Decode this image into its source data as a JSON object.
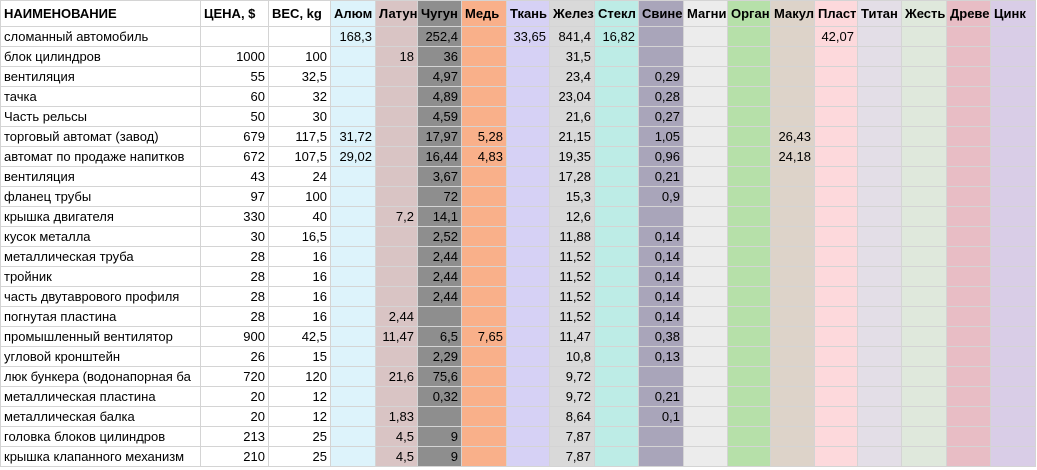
{
  "table": {
    "headers": [
      "НАИМЕНОВАНИЕ",
      "ЦЕНА, $",
      "ВЕС, kg",
      "Алюм",
      "Латун",
      "Чугун",
      "Медь",
      "Ткань",
      "Желез",
      "Стекл",
      "Свине",
      "Магни",
      "Орган",
      "Макул",
      "Пласти",
      "Титан",
      "Жесть",
      "Древе",
      "Цинк"
    ],
    "rows": [
      [
        "сломанный автомобиль",
        null,
        null,
        "168,3",
        null,
        "252,4",
        null,
        "33,65",
        "841,4",
        "16,82",
        null,
        null,
        null,
        null,
        "42,07",
        null,
        null,
        null,
        null
      ],
      [
        "блок цилиндров",
        "1000",
        "100",
        null,
        "18",
        "36",
        null,
        null,
        "31,5",
        null,
        null,
        null,
        null,
        null,
        null,
        null,
        null,
        null,
        null
      ],
      [
        "вентиляция",
        "55",
        "32,5",
        null,
        null,
        "4,97",
        null,
        null,
        "23,4",
        null,
        "0,29",
        null,
        null,
        null,
        null,
        null,
        null,
        null,
        null
      ],
      [
        "тачка",
        "60",
        "32",
        null,
        null,
        "4,89",
        null,
        null,
        "23,04",
        null,
        "0,28",
        null,
        null,
        null,
        null,
        null,
        null,
        null,
        null
      ],
      [
        "Часть рельсы",
        "50",
        "30",
        null,
        null,
        "4,59",
        null,
        null,
        "21,6",
        null,
        "0,27",
        null,
        null,
        null,
        null,
        null,
        null,
        null,
        null
      ],
      [
        "торговый автомат (завод)",
        "679",
        "117,5",
        "31,72",
        null,
        "17,97",
        "5,28",
        null,
        "21,15",
        null,
        "1,05",
        null,
        null,
        "26,43",
        null,
        null,
        null,
        null,
        null
      ],
      [
        "автомат по продаже напитков",
        "672",
        "107,5",
        "29,02",
        null,
        "16,44",
        "4,83",
        null,
        "19,35",
        null,
        "0,96",
        null,
        null,
        "24,18",
        null,
        null,
        null,
        null,
        null
      ],
      [
        "вентиляция",
        "43",
        "24",
        null,
        null,
        "3,67",
        null,
        null,
        "17,28",
        null,
        "0,21",
        null,
        null,
        null,
        null,
        null,
        null,
        null,
        null
      ],
      [
        "фланец трубы",
        "97",
        "100",
        null,
        null,
        "72",
        null,
        null,
        "15,3",
        null,
        "0,9",
        null,
        null,
        null,
        null,
        null,
        null,
        null,
        null
      ],
      [
        "крышка двигателя",
        "330",
        "40",
        null,
        "7,2",
        "14,1",
        null,
        null,
        "12,6",
        null,
        null,
        null,
        null,
        null,
        null,
        null,
        null,
        null,
        null
      ],
      [
        "кусок металла",
        "30",
        "16,5",
        null,
        null,
        "2,52",
        null,
        null,
        "11,88",
        null,
        "0,14",
        null,
        null,
        null,
        null,
        null,
        null,
        null,
        null
      ],
      [
        "металлическая труба",
        "28",
        "16",
        null,
        null,
        "2,44",
        null,
        null,
        "11,52",
        null,
        "0,14",
        null,
        null,
        null,
        null,
        null,
        null,
        null,
        null
      ],
      [
        "тройник",
        "28",
        "16",
        null,
        null,
        "2,44",
        null,
        null,
        "11,52",
        null,
        "0,14",
        null,
        null,
        null,
        null,
        null,
        null,
        null,
        null
      ],
      [
        "часть двутаврового профиля",
        "28",
        "16",
        null,
        null,
        "2,44",
        null,
        null,
        "11,52",
        null,
        "0,14",
        null,
        null,
        null,
        null,
        null,
        null,
        null,
        null
      ],
      [
        "погнутая пластина",
        "28",
        "16",
        null,
        "2,44",
        null,
        null,
        null,
        "11,52",
        null,
        "0,14",
        null,
        null,
        null,
        null,
        null,
        null,
        null,
        null
      ],
      [
        "промышленный вентилятор",
        "900",
        "42,5",
        null,
        "11,47",
        "6,5",
        "7,65",
        null,
        "11,47",
        null,
        "0,38",
        null,
        null,
        null,
        null,
        null,
        null,
        null,
        null
      ],
      [
        "угловой кронштейн",
        "26",
        "15",
        null,
        null,
        "2,29",
        null,
        null,
        "10,8",
        null,
        "0,13",
        null,
        null,
        null,
        null,
        null,
        null,
        null,
        null
      ],
      [
        "люк бункера (водонапорная ба",
        "720",
        "120",
        null,
        "21,6",
        "75,6",
        null,
        null,
        "9,72",
        null,
        null,
        null,
        null,
        null,
        null,
        null,
        null,
        null,
        null
      ],
      [
        "металлическая пластина",
        "20",
        "12",
        null,
        null,
        "0,32",
        null,
        null,
        "9,72",
        null,
        "0,21",
        null,
        null,
        null,
        null,
        null,
        null,
        null,
        null
      ],
      [
        "металлическая балка",
        "20",
        "12",
        null,
        "1,83",
        null,
        null,
        null,
        "8,64",
        null,
        "0,1",
        null,
        null,
        null,
        null,
        null,
        null,
        null,
        null
      ],
      [
        "головка блоков цилиндров",
        "213",
        "25",
        null,
        "4,5",
        "9",
        null,
        null,
        "7,87",
        null,
        null,
        null,
        null,
        null,
        null,
        null,
        null,
        null,
        null
      ],
      [
        "крышка клапанного механизм",
        "210",
        "25",
        null,
        "4,5",
        "9",
        null,
        null,
        "7,87",
        null,
        null,
        null,
        null,
        null,
        null,
        null,
        null,
        null,
        null
      ]
    ]
  }
}
